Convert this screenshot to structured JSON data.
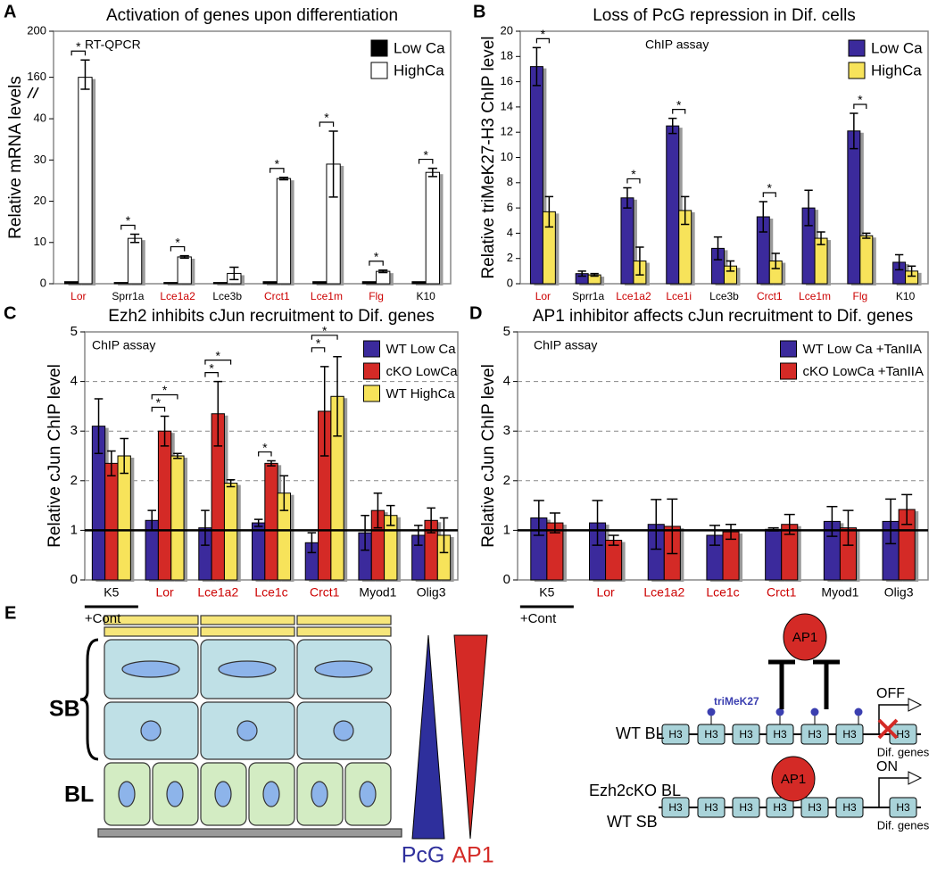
{
  "chart_data": [
    {
      "type": "bar",
      "panel": "A",
      "title": "Activation of genes upon differentiation",
      "annotation": "RT-QPCR",
      "ylabel": "Relative mRNA levels",
      "categories": [
        "Lor",
        "Sprr1a",
        "Lce1a2",
        "Lce3b",
        "Crct1",
        "Lce1m",
        "Flg",
        "K10"
      ],
      "category_colors": [
        "#cc0000",
        "#000000",
        "#cc0000",
        "#000000",
        "#cc0000",
        "#cc0000",
        "#cc0000",
        "#000000"
      ],
      "series": [
        {
          "name": "Low Ca",
          "color": "#000000",
          "values": [
            0.5,
            0.3,
            0.3,
            0.3,
            0.5,
            0.5,
            0.5,
            0.5
          ],
          "errors": [
            0,
            0,
            0,
            0,
            0,
            0,
            0,
            0
          ]
        },
        {
          "name": "HighCa",
          "color": "#ffffff",
          "values": [
            160,
            11,
            6.5,
            2.5,
            25.5,
            29,
            3,
            27
          ],
          "errors": [
            15,
            1,
            0.3,
            1.5,
            0.3,
            8,
            0.3,
            1
          ]
        }
      ],
      "ylim": [
        0,
        200
      ],
      "ybreak": [
        45,
        150
      ],
      "yticks": [
        0,
        10,
        20,
        30,
        40,
        160,
        200
      ],
      "legend": "upper right",
      "significance": [
        [
          "*"
        ],
        [
          "*"
        ],
        [
          "*"
        ],
        [],
        [
          "*"
        ],
        [
          "*"
        ],
        [
          "*"
        ],
        [
          "*"
        ]
      ]
    },
    {
      "type": "bar",
      "panel": "B",
      "title": "Loss of PcG repression in Dif. cells",
      "annotation": "ChIP assay",
      "ylabel": "Relative triMeK27-H3 ChIP level",
      "categories": [
        "Lor",
        "Sprr1a",
        "Lce1a2",
        "Lce1i",
        "Lce3b",
        "Crct1",
        "Lce1m",
        "Flg",
        "K10"
      ],
      "category_colors": [
        "#cc0000",
        "#000000",
        "#cc0000",
        "#cc0000",
        "#000000",
        "#cc0000",
        "#cc0000",
        "#cc0000",
        "#000000"
      ],
      "series": [
        {
          "name": "Low Ca",
          "color": "#3b2a9c",
          "values": [
            17.2,
            0.8,
            6.8,
            12.5,
            2.8,
            5.3,
            6.0,
            12.1,
            1.7
          ],
          "errors": [
            1.5,
            0.2,
            0.8,
            0.6,
            0.9,
            1.2,
            1.4,
            1.4,
            0.6
          ]
        },
        {
          "name": "HighCa",
          "color": "#f7e35a",
          "values": [
            5.7,
            0.7,
            1.8,
            5.8,
            1.4,
            1.8,
            3.6,
            3.8,
            1.0
          ],
          "errors": [
            1.2,
            0.1,
            1.1,
            1.1,
            0.4,
            0.6,
            0.5,
            0.2,
            0.4
          ]
        }
      ],
      "ylim": [
        0,
        20
      ],
      "yticks": [
        0,
        2,
        4,
        6,
        8,
        10,
        12,
        14,
        16,
        18,
        20
      ],
      "legend": "upper right",
      "significance": [
        [
          "*"
        ],
        [],
        [
          "*"
        ],
        [
          "*"
        ],
        [],
        [
          "*"
        ],
        [],
        [
          "*"
        ],
        []
      ]
    },
    {
      "type": "bar",
      "panel": "C",
      "title": "Ezh2 inhibits cJun recruitment to Dif. genes",
      "annotation": "ChIP assay",
      "ylabel": "Relative cJun ChIP level",
      "categories": [
        "K5",
        "Lor",
        "Lce1a2",
        "Lce1c",
        "Crct1",
        "Myod1",
        "Olig3"
      ],
      "category_colors": [
        "#000000",
        "#cc0000",
        "#cc0000",
        "#cc0000",
        "#cc0000",
        "#000000",
        "#000000"
      ],
      "series": [
        {
          "name": "WT Low Ca",
          "color": "#3b2a9c",
          "values": [
            3.1,
            1.2,
            1.05,
            1.15,
            0.75,
            0.95,
            0.9
          ],
          "errors": [
            0.55,
            0.2,
            0.35,
            0.07,
            0.2,
            0.35,
            0.2
          ]
        },
        {
          "name": "cKO LowCa",
          "color": "#d42a26",
          "values": [
            2.35,
            3.0,
            3.35,
            2.35,
            3.4,
            1.4,
            1.2
          ],
          "errors": [
            0.25,
            0.3,
            0.65,
            0.05,
            0.9,
            0.35,
            0.25
          ]
        },
        {
          "name": "WT HighCa",
          "color": "#f7e35a",
          "values": [
            2.5,
            2.5,
            1.95,
            1.75,
            3.7,
            1.3,
            0.9
          ],
          "errors": [
            0.35,
            0.05,
            0.07,
            0.35,
            0.8,
            0.2,
            0.35
          ]
        }
      ],
      "ylim": [
        0,
        5
      ],
      "yticks": [
        0,
        1,
        2,
        3,
        4,
        5
      ],
      "grid": "dashed",
      "reference_line": 1,
      "legend": "upper right",
      "control_label": "+Cont",
      "significance": [
        [],
        [
          "*",
          "*"
        ],
        [
          "*",
          "*"
        ],
        [
          "*"
        ],
        [
          "*",
          "*"
        ],
        [],
        []
      ]
    },
    {
      "type": "bar",
      "panel": "D",
      "title": "AP1 inhibitor affects cJun recruitment to Dif. genes",
      "annotation": "ChIP assay",
      "ylabel": "Relative cJun ChIP level",
      "categories": [
        "K5",
        "Lor",
        "Lce1a2",
        "Lce1c",
        "Crct1",
        "Myod1",
        "Olig3"
      ],
      "category_colors": [
        "#000000",
        "#cc0000",
        "#cc0000",
        "#cc0000",
        "#cc0000",
        "#000000",
        "#000000"
      ],
      "series": [
        {
          "name": "WT Low Ca +TanIIA",
          "color": "#3b2a9c",
          "values": [
            1.25,
            1.15,
            1.12,
            0.9,
            1.02,
            1.18,
            1.18
          ],
          "errors": [
            0.35,
            0.45,
            0.5,
            0.2,
            0.03,
            0.3,
            0.45
          ]
        },
        {
          "name": "cKO LowCa +TanIIA",
          "color": "#d42a26",
          "values": [
            1.15,
            0.8,
            1.08,
            0.97,
            1.12,
            1.05,
            1.42
          ],
          "errors": [
            0.2,
            0.1,
            0.55,
            0.15,
            0.2,
            0.35,
            0.3
          ]
        }
      ],
      "ylim": [
        0,
        5
      ],
      "yticks": [
        0,
        1,
        2,
        3,
        4,
        5
      ],
      "grid": "dashed",
      "reference_line": 1,
      "legend": "upper right",
      "control_label": "+Cont",
      "significance": [
        [],
        [],
        [],
        [],
        [],
        [],
        []
      ]
    }
  ],
  "diagram": {
    "panel": "E",
    "layers": [
      "SB",
      "BL"
    ],
    "gradient_labels": [
      "PcG",
      "AP1"
    ],
    "factor": "AP1",
    "mark_label": "triMeK27",
    "rows": [
      {
        "labels": [
          "WT  BL"
        ],
        "state": "OFF",
        "nucleosomes": [
          "H3",
          "H3",
          "H3",
          "H3",
          "H3",
          "H3",
          "H3"
        ],
        "gene": "Dif. genes"
      },
      {
        "labels": [
          "Ezh2cKO BL",
          "WT SB"
        ],
        "state": "ON",
        "nucleosomes": [
          "H3",
          "H3",
          "H3",
          "H3",
          "H3",
          "H3",
          "H3"
        ],
        "gene": "Dif. genes"
      }
    ]
  }
}
